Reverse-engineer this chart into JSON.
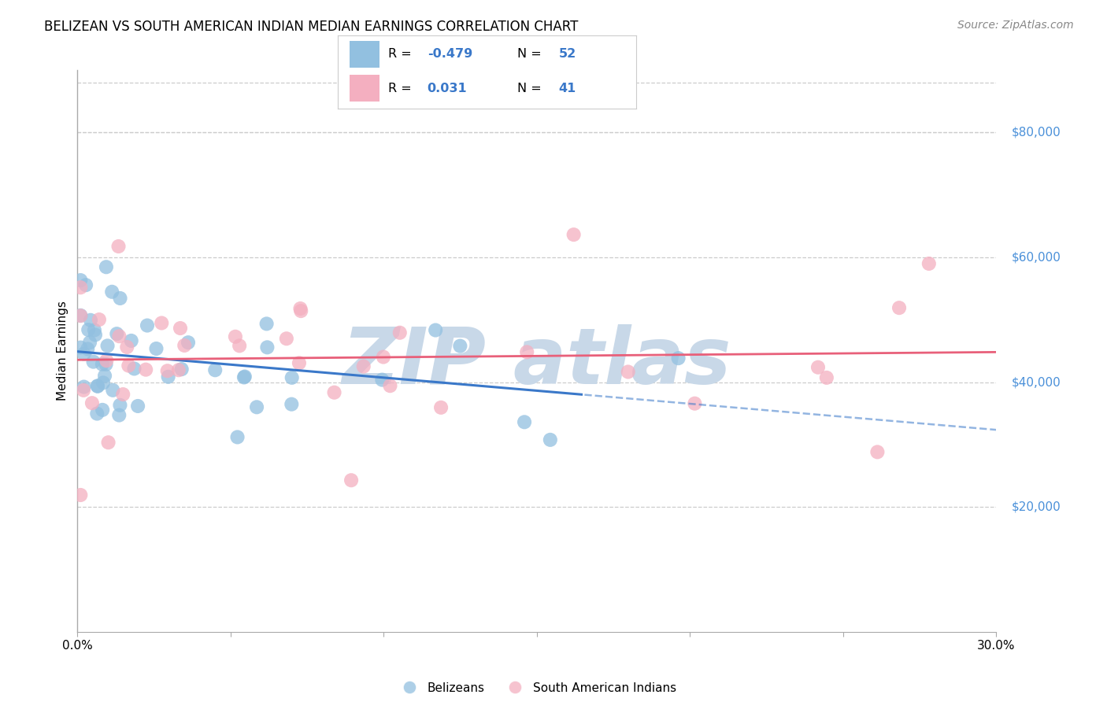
{
  "title": "BELIZEAN VS SOUTH AMERICAN INDIAN MEDIAN EARNINGS CORRELATION CHART",
  "source": "Source: ZipAtlas.com",
  "ylabel": "Median Earnings",
  "xlim": [
    0.0,
    0.3
  ],
  "ylim": [
    0,
    90000
  ],
  "yticks": [
    20000,
    40000,
    60000,
    80000
  ],
  "ytick_labels": [
    "$20,000",
    "$40,000",
    "$60,000",
    "$80,000"
  ],
  "xticks": [
    0.0,
    0.05,
    0.1,
    0.15,
    0.2,
    0.25,
    0.3
  ],
  "xtick_labels": [
    "0.0%",
    "",
    "",
    "",
    "",
    "",
    "30.0%"
  ],
  "background_color": "#ffffff",
  "grid_color": "#cccccc",
  "blue_color": "#92c0e0",
  "pink_color": "#f4afc0",
  "blue_line_color": "#3a78c9",
  "pink_line_color": "#e8607a",
  "ytick_color": "#4a90d9",
  "title_fontsize": 12,
  "axis_label_fontsize": 11,
  "tick_fontsize": 11,
  "source_fontsize": 10,
  "legend_r1": "-0.479",
  "legend_n1": "52",
  "legend_r2": "0.031",
  "legend_n2": "41",
  "watermark_color": "#c8d8e8"
}
